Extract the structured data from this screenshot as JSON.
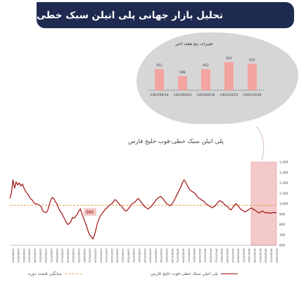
{
  "header": {
    "title": "تحلیل بازار جهانی پلی اتیلن سبک خطی"
  },
  "colors": {
    "header_bg": "#1e2a4f",
    "main_series": "#a01010",
    "average_line": "#e8a04b",
    "highlight_band": "#f4c9c9",
    "weekly_bars": "#f3a3a0"
  },
  "chart_data": [
    {
      "type": "bar",
      "title": "تغییرات پنج هفته اخیر",
      "categories": [
        "1403/09/14",
        "1403/09/23",
        "1403/09/30",
        "1403/10/21",
        "1403/10/28"
      ],
      "values": [
        912,
        908,
        912,
        916,
        915
      ],
      "data_labels": [
        "912",
        "908",
        "912",
        "916",
        "915"
      ],
      "ylim": [
        900,
        920
      ]
    },
    {
      "type": "line",
      "title": "پلی اتیلن سبک خطی-فوب خلیج فارس",
      "ylim": [
        600,
        1400
      ],
      "yticks": [
        "1,400",
        "1,300",
        "1,200",
        "1,100",
        "1,000",
        "900",
        "800",
        "700",
        "600"
      ],
      "ytick_values": [
        1400,
        1300,
        1200,
        1100,
        1000,
        900,
        800,
        700,
        600
      ],
      "average": 985,
      "average_label": "985",
      "xticks": [
        "1394/04/14",
        "1394/06/10",
        "1394/08/15",
        "1394/10/20",
        "1395/01/08",
        "1395/03/12",
        "1395/05/18",
        "1395/07/22",
        "1395/09/26",
        "1396/01/12",
        "1396/03/18",
        "1396/05/22",
        "1396/07/26",
        "1396/10/02",
        "1397/01/10",
        "1397/03/14",
        "1397/05/20",
        "1397/07/25",
        "1397/10/01",
        "1398/01/08",
        "1398/03/12",
        "1398/05/18",
        "1398/07/22",
        "1398/10/02",
        "1399/01/10",
        "1399/03/14",
        "1399/05/20",
        "1399/07/24",
        "1399/10/01",
        "1400/01/08",
        "1400/03/12",
        "1400/05/18",
        "1400/07/22",
        "1400/10/01",
        "1401/01/08",
        "1401/03/12",
        "1401/05/18",
        "1401/07/22",
        "1401/10/01",
        "1402/01/08",
        "1402/03/12",
        "1402/05/18",
        "1402/07/22",
        "1402/10/01",
        "1403/01/08",
        "1403/03/12",
        "1403/05/18",
        "1403/07/22",
        "1403/10/28"
      ],
      "values": [
        1050,
        1100,
        1230,
        1150,
        1210,
        1180,
        1200,
        1170,
        1190,
        1150,
        1120,
        1100,
        1080,
        1050,
        1040,
        1020,
        1000,
        1000,
        990,
        985,
        970,
        930,
        920,
        915,
        930,
        980,
        1030,
        1060,
        1050,
        1020,
        1000,
        960,
        930,
        910,
        880,
        850,
        820,
        800,
        810,
        830,
        870,
        860,
        880,
        900,
        930,
        950,
        900,
        860,
        820,
        780,
        730,
        700,
        680,
        660,
        700,
        760,
        820,
        860,
        890,
        910,
        930,
        950,
        960,
        980,
        990,
        1000,
        1020,
        1040,
        1030,
        1010,
        990,
        980,
        960,
        940,
        930,
        940,
        960,
        980,
        1000,
        1010,
        1020,
        1040,
        1050,
        1030,
        1010,
        990,
        970,
        960,
        950,
        960,
        970,
        990,
        1010,
        1030,
        1050,
        1060,
        1070,
        1060,
        1040,
        1020,
        1000,
        990,
        980,
        990,
        1010,
        1040,
        1070,
        1100,
        1130,
        1160,
        1200,
        1230,
        1210,
        1180,
        1150,
        1130,
        1120,
        1110,
        1100,
        1080,
        1060,
        1050,
        1040,
        1030,
        1020,
        1000,
        990,
        980,
        970,
        960,
        970,
        980,
        1000,
        1020,
        1030,
        1020,
        1010,
        990,
        980,
        970,
        950,
        940,
        960,
        980,
        1000,
        990,
        970,
        950,
        940,
        930,
        920,
        930,
        940,
        950,
        960,
        950,
        940,
        930,
        920,
        910,
        920,
        930,
        920,
        910,
        915,
        912,
        908,
        912,
        916,
        915,
        912
      ],
      "highlight_range": [
        "1403/01/08",
        "1403/10/28"
      ],
      "legend": [
        {
          "label": "پلی اتیلن سبک خطی-فوب خلیج فارس",
          "style": "solid"
        },
        {
          "label": "میانگین قیمت دوره",
          "style": "dashed"
        }
      ]
    }
  ]
}
